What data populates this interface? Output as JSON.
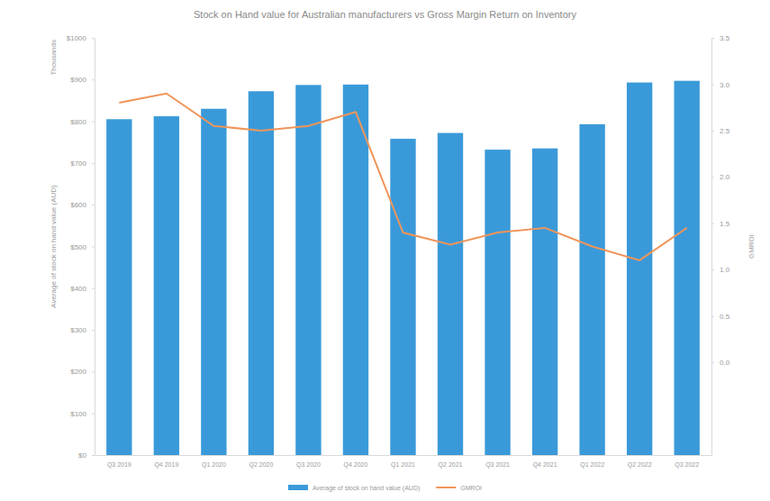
{
  "chart_data": {
    "type": "bar",
    "title": "Stock on Hand value for Australian manufacturers vs Gross Margin Return on Inventory",
    "categories": [
      "Q3 2019",
      "Q4 2019",
      "Q1 2020",
      "Q2 2020",
      "Q3 2020",
      "Q4 2020",
      "Q1 2021",
      "Q2 2021",
      "Q3 2021",
      "Q4 2021",
      "Q1 2022",
      "Q2 2022",
      "Q3 2022"
    ],
    "series": [
      {
        "name": "Average of stock on hand value (AUD)",
        "type": "bar",
        "color": "#3a9ad9",
        "values": [
          805,
          812,
          830,
          872,
          887,
          888,
          758,
          772,
          732,
          735,
          793,
          893,
          897
        ]
      },
      {
        "name": "GMROI",
        "type": "line",
        "color": "#f0955a",
        "axis": "y2",
        "values": [
          2.8,
          2.9,
          2.55,
          2.5,
          2.55,
          2.7,
          1.4,
          1.27,
          1.4,
          1.45,
          1.25,
          1.1,
          1.45
        ]
      }
    ],
    "ylabel": "Average of stock on hand value (AUD)",
    "y2label": "GMROI",
    "annotations": [
      "Thousands"
    ],
    "ylim": [
      0,
      1000
    ],
    "yticks": [
      {
        "value": 0,
        "label": "$0"
      },
      {
        "value": 100,
        "label": "$100"
      },
      {
        "value": 200,
        "label": "$200"
      },
      {
        "value": 300,
        "label": "$300"
      },
      {
        "value": 400,
        "label": "$400"
      },
      {
        "value": 500,
        "label": "$500"
      },
      {
        "value": 600,
        "label": "$600"
      },
      {
        "value": 700,
        "label": "$700"
      },
      {
        "value": 800,
        "label": "$800"
      },
      {
        "value": 900,
        "label": "$900"
      },
      {
        "value": 1000,
        "label": "$1000"
      }
    ],
    "y2lim": [
      -1,
      3.5
    ],
    "y2ticks": [
      {
        "value": 0,
        "label": "0.0"
      },
      0.5,
      {
        "value": 1,
        "label": "1.0"
      },
      1.5,
      {
        "value": 2,
        "label": "2.0"
      },
      2.5,
      {
        "value": 3,
        "label": "3.0"
      },
      3.5
    ],
    "grid": false,
    "legend": "bottom"
  }
}
